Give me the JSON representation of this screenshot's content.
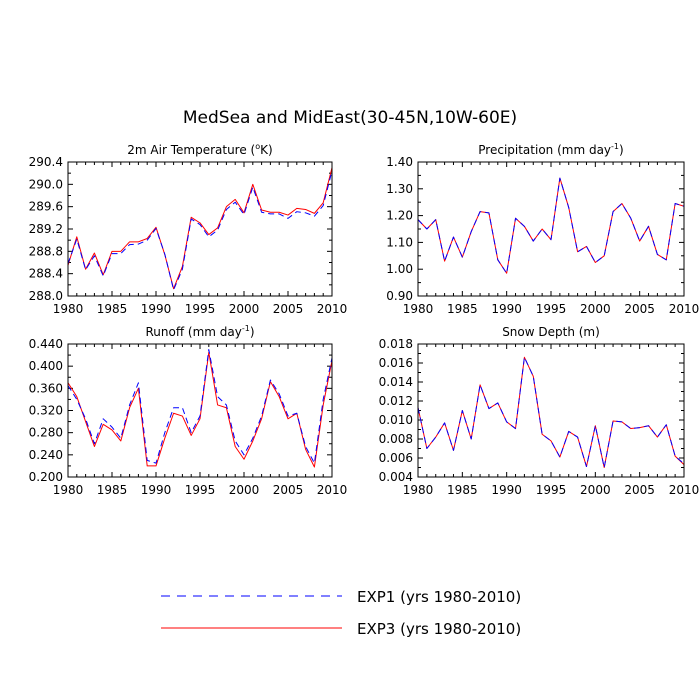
{
  "figure": {
    "title": "MedSea and MidEast(30-45N,10W-60E)"
  },
  "legend": [
    {
      "label": "EXP1 (yrs 1980-2010)",
      "color": "#0000ff",
      "dash": "dashed"
    },
    {
      "label": "EXP3 (yrs 1980-2010)",
      "color": "#ff0000",
      "dash": "solid"
    }
  ],
  "chart_data": [
    {
      "type": "line",
      "title": "2m Air Temperature (°K)",
      "title_parts": [
        "2m Air Temperature (",
        "o",
        "K)"
      ],
      "xlim": [
        1980,
        2010
      ],
      "ylim": [
        288.0,
        290.4
      ],
      "xticks": [
        1980,
        1985,
        1990,
        1995,
        2000,
        2005,
        2010
      ],
      "yticks": [
        288.0,
        288.4,
        288.8,
        289.2,
        289.6,
        290.0,
        290.4
      ],
      "ytick_labels": [
        "288.0",
        "288.4",
        "288.8",
        "289.2",
        "289.6",
        "290.0",
        "290.4"
      ],
      "x": [
        1980,
        1981,
        1982,
        1983,
        1984,
        1985,
        1986,
        1987,
        1988,
        1989,
        1990,
        1991,
        1992,
        1993,
        1994,
        1995,
        1996,
        1997,
        1998,
        1999,
        2000,
        2001,
        2002,
        2003,
        2004,
        2005,
        2006,
        2007,
        2008,
        2009,
        2010
      ],
      "series": [
        {
          "name": "EXP1 (yrs 1980-2010)",
          "values": [
            288.58,
            289.02,
            288.47,
            288.72,
            288.36,
            288.76,
            288.76,
            288.92,
            288.93,
            289.0,
            289.21,
            288.75,
            288.11,
            288.48,
            289.38,
            289.28,
            289.06,
            289.18,
            289.55,
            289.68,
            289.46,
            289.95,
            289.5,
            289.47,
            289.47,
            289.39,
            289.51,
            289.49,
            289.43,
            289.62,
            290.24
          ]
        },
        {
          "name": "EXP3 (yrs 1980-2010)",
          "values": [
            288.55,
            289.06,
            288.48,
            288.77,
            288.38,
            288.8,
            288.8,
            288.97,
            288.97,
            289.03,
            289.23,
            288.74,
            288.13,
            288.53,
            289.41,
            289.31,
            289.1,
            289.22,
            289.6,
            289.73,
            289.49,
            290.0,
            289.54,
            289.5,
            289.5,
            289.45,
            289.57,
            289.55,
            289.48,
            289.67,
            290.3
          ]
        }
      ]
    },
    {
      "type": "line",
      "title": "Precipitation (mm day-1)",
      "title_parts": [
        "Precipitation (mm day",
        "-1",
        ")"
      ],
      "xlim": [
        1980,
        2010
      ],
      "ylim": [
        0.9,
        1.4
      ],
      "xticks": [
        1980,
        1985,
        1990,
        1995,
        2000,
        2005,
        2010
      ],
      "yticks": [
        0.9,
        1.0,
        1.1,
        1.2,
        1.3,
        1.4
      ],
      "ytick_labels": [
        "0.90",
        "1.00",
        "1.10",
        "1.20",
        "1.30",
        "1.40"
      ],
      "x": [
        1980,
        1981,
        1982,
        1983,
        1984,
        1985,
        1986,
        1987,
        1988,
        1989,
        1990,
        1991,
        1992,
        1993,
        1994,
        1995,
        1996,
        1997,
        1998,
        1999,
        2000,
        2001,
        2002,
        2003,
        2004,
        2005,
        2006,
        2007,
        2008,
        2009,
        2010
      ],
      "series": [
        {
          "name": "EXP1 (yrs 1980-2010)",
          "values": [
            1.185,
            1.15,
            1.185,
            1.03,
            1.12,
            1.045,
            1.14,
            1.215,
            1.21,
            1.035,
            0.985,
            1.19,
            1.16,
            1.105,
            1.15,
            1.11,
            1.34,
            1.23,
            1.065,
            1.085,
            1.025,
            1.05,
            1.215,
            1.245,
            1.19,
            1.105,
            1.16,
            1.055,
            1.035,
            1.245,
            1.235
          ]
        },
        {
          "name": "EXP3 (yrs 1980-2010)",
          "values": [
            1.185,
            1.15,
            1.185,
            1.03,
            1.12,
            1.045,
            1.14,
            1.215,
            1.21,
            1.035,
            0.985,
            1.19,
            1.16,
            1.105,
            1.15,
            1.11,
            1.34,
            1.23,
            1.065,
            1.085,
            1.025,
            1.05,
            1.215,
            1.245,
            1.19,
            1.105,
            1.16,
            1.055,
            1.035,
            1.245,
            1.235
          ]
        }
      ]
    },
    {
      "type": "line",
      "title": "Runoff (mm day-1)",
      "title_parts": [
        "Runoff (mm day",
        "-1",
        ")"
      ],
      "xlim": [
        1980,
        2010
      ],
      "ylim": [
        0.2,
        0.44
      ],
      "xticks": [
        1980,
        1985,
        1990,
        1995,
        2000,
        2005,
        2010
      ],
      "yticks": [
        0.2,
        0.24,
        0.28,
        0.32,
        0.36,
        0.4,
        0.44
      ],
      "ytick_labels": [
        "0.200",
        "0.240",
        "0.280",
        "0.320",
        "0.360",
        "0.400",
        "0.440"
      ],
      "x": [
        1980,
        1981,
        1982,
        1983,
        1984,
        1985,
        1986,
        1987,
        1988,
        1989,
        1990,
        1991,
        1992,
        1993,
        1994,
        1995,
        1996,
        1997,
        1998,
        1999,
        2000,
        2001,
        2002,
        2003,
        2004,
        2005,
        2006,
        2007,
        2008,
        2009,
        2010
      ],
      "series": [
        {
          "name": "EXP1 (yrs 1980-2010)",
          "values": [
            0.365,
            0.34,
            0.305,
            0.26,
            0.305,
            0.29,
            0.27,
            0.33,
            0.37,
            0.23,
            0.225,
            0.28,
            0.325,
            0.325,
            0.28,
            0.31,
            0.43,
            0.345,
            0.33,
            0.265,
            0.24,
            0.27,
            0.31,
            0.375,
            0.35,
            0.31,
            0.315,
            0.255,
            0.225,
            0.34,
            0.415
          ]
        },
        {
          "name": "EXP3 (yrs 1980-2010)",
          "values": [
            0.37,
            0.345,
            0.3,
            0.255,
            0.295,
            0.285,
            0.265,
            0.325,
            0.36,
            0.22,
            0.22,
            0.27,
            0.315,
            0.31,
            0.275,
            0.305,
            0.425,
            0.33,
            0.325,
            0.255,
            0.232,
            0.265,
            0.305,
            0.372,
            0.345,
            0.305,
            0.315,
            0.25,
            0.218,
            0.33,
            0.41
          ]
        }
      ]
    },
    {
      "type": "line",
      "title": "Snow Depth (m)",
      "title_parts": [
        "Snow Depth (m)",
        "",
        ""
      ],
      "xlim": [
        1980,
        2010
      ],
      "ylim": [
        0.004,
        0.018
      ],
      "xticks": [
        1980,
        1985,
        1990,
        1995,
        2000,
        2005,
        2010
      ],
      "yticks": [
        0.004,
        0.006,
        0.008,
        0.01,
        0.012,
        0.014,
        0.016,
        0.018
      ],
      "ytick_labels": [
        "0.004",
        "0.006",
        "0.008",
        "0.010",
        "0.012",
        "0.014",
        "0.016",
        "0.018"
      ],
      "x": [
        1980,
        1981,
        1982,
        1983,
        1984,
        1985,
        1986,
        1987,
        1988,
        1989,
        1990,
        1991,
        1992,
        1993,
        1994,
        1995,
        1996,
        1997,
        1998,
        1999,
        2000,
        2001,
        2002,
        2003,
        2004,
        2005,
        2006,
        2007,
        2008,
        2009,
        2010
      ],
      "series": [
        {
          "name": "EXP1 (yrs 1980-2010)",
          "values": [
            0.0113,
            0.007,
            0.0082,
            0.0097,
            0.0068,
            0.011,
            0.008,
            0.0137,
            0.0112,
            0.0118,
            0.0098,
            0.0091,
            0.0166,
            0.0146,
            0.0085,
            0.0078,
            0.0061,
            0.0088,
            0.0082,
            0.0051,
            0.0094,
            0.005,
            0.0099,
            0.0098,
            0.0091,
            0.0092,
            0.0094,
            0.0082,
            0.0095,
            0.0062,
            0.0054
          ]
        },
        {
          "name": "EXP3 (yrs 1980-2010)",
          "values": [
            0.0113,
            0.007,
            0.0082,
            0.0097,
            0.0068,
            0.011,
            0.008,
            0.0137,
            0.0112,
            0.0118,
            0.0098,
            0.0091,
            0.0166,
            0.0146,
            0.0085,
            0.0078,
            0.0061,
            0.0088,
            0.0082,
            0.0051,
            0.0094,
            0.005,
            0.0099,
            0.0098,
            0.0091,
            0.0092,
            0.0094,
            0.0082,
            0.0095,
            0.0062,
            0.0053
          ]
        }
      ]
    }
  ]
}
